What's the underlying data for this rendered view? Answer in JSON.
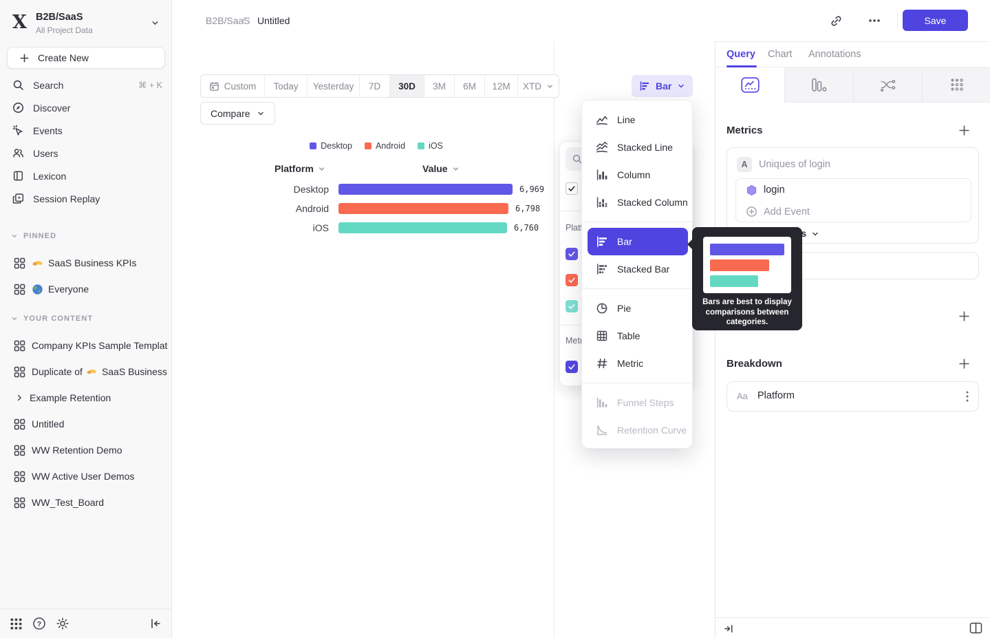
{
  "colors": {
    "accent": "#4f44e0",
    "tooltip_bg": "#26262e"
  },
  "sidebar": {
    "project_name": "B2B/SaaS",
    "project_subtitle": "All Project Data",
    "create_new_label": "Create New",
    "nav": [
      {
        "label": "Search",
        "shortcut": "⌘ + K"
      },
      {
        "label": "Discover"
      },
      {
        "label": "Events"
      },
      {
        "label": "Users"
      },
      {
        "label": "Lexicon"
      },
      {
        "label": "Session Replay"
      }
    ],
    "pinned_title": "PINNED",
    "pinned_items": [
      {
        "emoji": "🤝",
        "label": "SaaS Business KPIs"
      },
      {
        "emoji": "🌍",
        "label": "Everyone"
      }
    ],
    "your_content_title": "YOUR CONTENT",
    "your_content_items": [
      {
        "label": "Company KPIs Sample Templat"
      },
      {
        "prefix": "Duplicate of",
        "emoji": "🤝",
        "suffix": "SaaS Business"
      },
      {
        "label": "Example Retention"
      },
      {
        "label": "Untitled"
      },
      {
        "label": "WW Retention Demo"
      },
      {
        "label": "WW Active User Demos"
      },
      {
        "label": "WW_Test_Board"
      }
    ]
  },
  "header": {
    "breadcrumb_project": "B2B/SaaS",
    "breadcrumb_separator": "/",
    "breadcrumb_page": "Untitled",
    "save_label": "Save"
  },
  "toolbar": {
    "date_ranges": [
      "Custom",
      "Today",
      "Yesterday",
      "7D",
      "30D",
      "3M",
      "6M",
      "12M",
      "XTD"
    ],
    "selected_range": "30D",
    "compare_label": "Compare",
    "chart_type_label": "Bar"
  },
  "chart_data": {
    "type": "bar",
    "orientation": "horizontal",
    "columns": [
      "Platform",
      "Value"
    ],
    "categories": [
      "Desktop",
      "Android",
      "iOS"
    ],
    "values": [
      6969,
      6798,
      6760
    ],
    "value_labels": [
      "6,969",
      "6,798",
      "6,760"
    ],
    "series_colors": [
      "#6157e6",
      "#f96a51",
      "#63d9c4"
    ],
    "legend": [
      "Desktop",
      "Android",
      "iOS"
    ],
    "legend_position": "top",
    "xlim": [
      0,
      7000
    ]
  },
  "series_popover": {
    "group1_label": "Platf",
    "group2_label": "Metr"
  },
  "chart_menu": {
    "items": [
      "Line",
      "Stacked Line",
      "Column",
      "Stacked Column",
      "Bar",
      "Stacked Bar",
      "Pie",
      "Table",
      "Metric",
      "Funnel Steps",
      "Retention Curve"
    ],
    "selected": "Bar",
    "disabled_items": [
      "Funnel Steps",
      "Retention Curve"
    ]
  },
  "tooltip": {
    "line1": "Bars are best to display",
    "line2": "comparisons between",
    "line3": "categories."
  },
  "query_panel": {
    "tabs": [
      "Query",
      "Chart",
      "Annotations"
    ],
    "active_tab": "Query",
    "metrics_title": "Metrics",
    "metric_row_letter": "A",
    "metric_row_name": "Uniques of login",
    "event_name": "login",
    "add_event_label": "Add Event",
    "measurement_tail": "es",
    "breakdown_title": "Breakdown",
    "breakdown_type_badge": "Aa",
    "breakdown_property": "Platform"
  }
}
